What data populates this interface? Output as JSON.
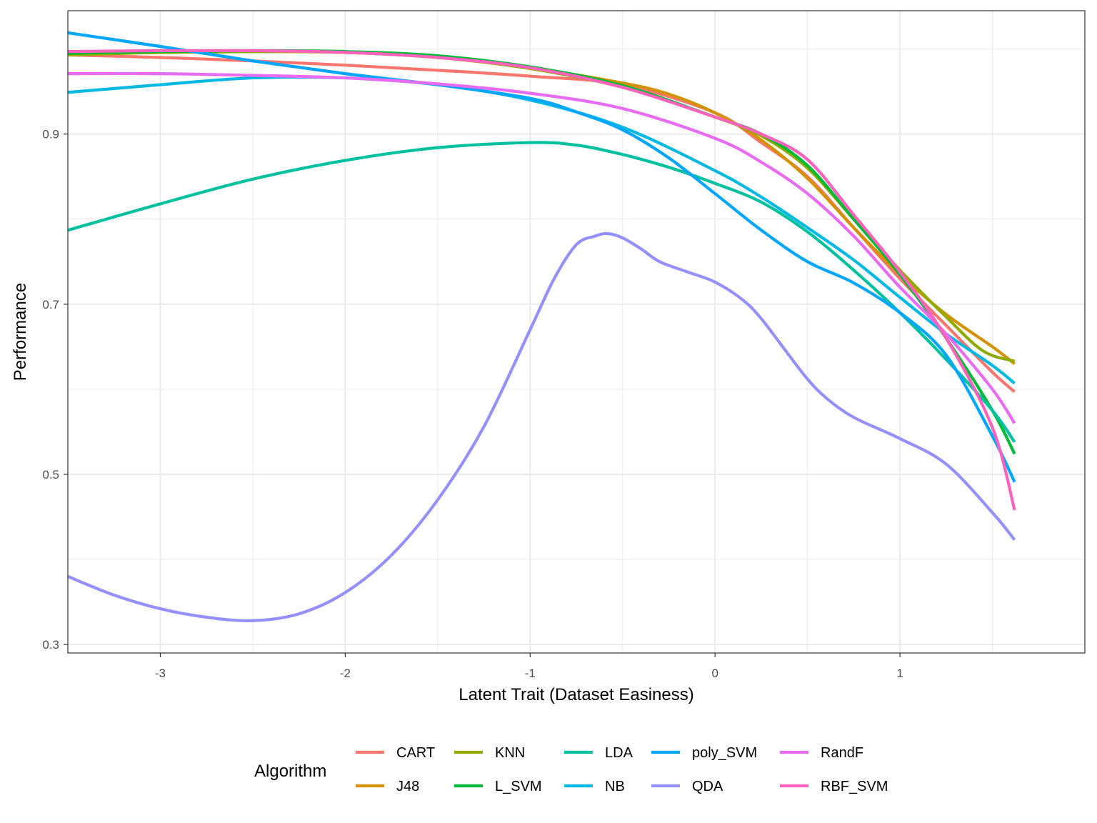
{
  "chart_data": {
    "type": "line",
    "xlabel": "Latent Trait (Dataset Easiness)",
    "ylabel": "Performance",
    "xlim": [
      -3.5,
      2.0
    ],
    "ylim": [
      0.29,
      1.045
    ],
    "x_ticks": [
      -3,
      -2,
      -1,
      0,
      1
    ],
    "x_tick_labels": [
      "-3",
      "-2",
      "-1",
      "0",
      "1"
    ],
    "y_ticks": [
      0.3,
      0.5,
      0.7,
      0.9
    ],
    "y_tick_labels": [
      "0.3",
      "0.5",
      "0.7",
      "0.9"
    ],
    "grid": true,
    "legend_title": "Algorithm",
    "legend_position": "bottom",
    "series": [
      {
        "name": "CART",
        "color": "#F8766D",
        "points": [
          [
            -3.5,
            0.993
          ],
          [
            -3,
            0.99
          ],
          [
            -2.5,
            0.986
          ],
          [
            -2,
            0.981
          ],
          [
            -1.5,
            0.975
          ],
          [
            -1,
            0.968
          ],
          [
            -0.5,
            0.958
          ],
          [
            0,
            0.925
          ],
          [
            0.25,
            0.89
          ],
          [
            0.5,
            0.85
          ],
          [
            0.75,
            0.79
          ],
          [
            1,
            0.73
          ],
          [
            1.25,
            0.675
          ],
          [
            1.5,
            0.62
          ],
          [
            1.62,
            0.597
          ]
        ]
      },
      {
        "name": "J48",
        "color": "#D39200",
        "points": [
          [
            -3.5,
            0.994
          ],
          [
            -3,
            0.996
          ],
          [
            -2.5,
            0.997
          ],
          [
            -2,
            0.996
          ],
          [
            -1.5,
            0.99
          ],
          [
            -1,
            0.978
          ],
          [
            -0.5,
            0.96
          ],
          [
            -0.25,
            0.947
          ],
          [
            0,
            0.925
          ],
          [
            0.25,
            0.893
          ],
          [
            0.5,
            0.848
          ],
          [
            0.75,
            0.79
          ],
          [
            1,
            0.735
          ],
          [
            1.25,
            0.688
          ],
          [
            1.5,
            0.65
          ],
          [
            1.62,
            0.63
          ]
        ]
      },
      {
        "name": "KNN",
        "color": "#93AA00",
        "points": [
          [
            -3.5,
            0.993
          ],
          [
            -3,
            0.996
          ],
          [
            -2.5,
            0.997
          ],
          [
            -2,
            0.996
          ],
          [
            -1.5,
            0.99
          ],
          [
            -1,
            0.977
          ],
          [
            -0.5,
            0.955
          ],
          [
            0,
            0.92
          ],
          [
            0.25,
            0.898
          ],
          [
            0.5,
            0.86
          ],
          [
            0.75,
            0.8
          ],
          [
            1,
            0.74
          ],
          [
            1.25,
            0.685
          ],
          [
            1.45,
            0.645
          ],
          [
            1.62,
            0.633
          ]
        ]
      },
      {
        "name": "L_SVM",
        "color": "#00BA38",
        "points": [
          [
            -3.5,
            0.995
          ],
          [
            -3,
            0.997
          ],
          [
            -2.5,
            0.998
          ],
          [
            -2,
            0.997
          ],
          [
            -1.5,
            0.992
          ],
          [
            -1,
            0.979
          ],
          [
            -0.5,
            0.957
          ],
          [
            0,
            0.92
          ],
          [
            0.25,
            0.9
          ],
          [
            0.5,
            0.863
          ],
          [
            0.75,
            0.8
          ],
          [
            1,
            0.735
          ],
          [
            1.25,
            0.66
          ],
          [
            1.5,
            0.575
          ],
          [
            1.62,
            0.524
          ]
        ]
      },
      {
        "name": "LDA",
        "color": "#00C19F",
        "points": [
          [
            -3.5,
            0.787
          ],
          [
            -3,
            0.818
          ],
          [
            -2.5,
            0.847
          ],
          [
            -2,
            0.869
          ],
          [
            -1.5,
            0.884
          ],
          [
            -1,
            0.89
          ],
          [
            -0.75,
            0.887
          ],
          [
            -0.5,
            0.876
          ],
          [
            -0.25,
            0.861
          ],
          [
            0,
            0.842
          ],
          [
            0.25,
            0.82
          ],
          [
            0.5,
            0.785
          ],
          [
            0.75,
            0.74
          ],
          [
            1,
            0.69
          ],
          [
            1.25,
            0.635
          ],
          [
            1.5,
            0.575
          ],
          [
            1.62,
            0.538
          ]
        ]
      },
      {
        "name": "NB",
        "color": "#00B9E3",
        "points": [
          [
            -3.5,
            0.949
          ],
          [
            -3,
            0.958
          ],
          [
            -2.5,
            0.966
          ],
          [
            -2,
            0.966
          ],
          [
            -1.5,
            0.958
          ],
          [
            -1,
            0.94
          ],
          [
            -0.5,
            0.908
          ],
          [
            0,
            0.857
          ],
          [
            0.25,
            0.826
          ],
          [
            0.5,
            0.79
          ],
          [
            0.75,
            0.752
          ],
          [
            1,
            0.708
          ],
          [
            1.25,
            0.665
          ],
          [
            1.5,
            0.628
          ],
          [
            1.62,
            0.607
          ]
        ]
      },
      {
        "name": "poly_SVM",
        "color": "#00A6FF",
        "points": [
          [
            -3.5,
            1.019
          ],
          [
            -3,
            1.003
          ],
          [
            -2.5,
            0.986
          ],
          [
            -2,
            0.971
          ],
          [
            -1.5,
            0.958
          ],
          [
            -1,
            0.942
          ],
          [
            -0.75,
            0.926
          ],
          [
            -0.5,
            0.905
          ],
          [
            -0.25,
            0.872
          ],
          [
            0,
            0.83
          ],
          [
            0.25,
            0.787
          ],
          [
            0.5,
            0.75
          ],
          [
            0.75,
            0.725
          ],
          [
            1,
            0.69
          ],
          [
            1.25,
            0.64
          ],
          [
            1.5,
            0.545
          ],
          [
            1.62,
            0.491
          ]
        ]
      },
      {
        "name": "QDA",
        "color": "#9590FF",
        "points": [
          [
            -3.5,
            0.38
          ],
          [
            -3.25,
            0.358
          ],
          [
            -3,
            0.342
          ],
          [
            -2.75,
            0.332
          ],
          [
            -2.5,
            0.328
          ],
          [
            -2.25,
            0.336
          ],
          [
            -2,
            0.361
          ],
          [
            -1.75,
            0.405
          ],
          [
            -1.5,
            0.47
          ],
          [
            -1.25,
            0.556
          ],
          [
            -1,
            0.67
          ],
          [
            -0.87,
            0.73
          ],
          [
            -0.75,
            0.77
          ],
          [
            -0.65,
            0.78
          ],
          [
            -0.58,
            0.783
          ],
          [
            -0.5,
            0.778
          ],
          [
            -0.4,
            0.765
          ],
          [
            -0.3,
            0.75
          ],
          [
            -0.15,
            0.738
          ],
          [
            0,
            0.726
          ],
          [
            0.15,
            0.705
          ],
          [
            0.25,
            0.683
          ],
          [
            0.4,
            0.64
          ],
          [
            0.5,
            0.612
          ],
          [
            0.6,
            0.59
          ],
          [
            0.75,
            0.567
          ],
          [
            1,
            0.542
          ],
          [
            1.25,
            0.512
          ],
          [
            1.5,
            0.455
          ],
          [
            1.62,
            0.423
          ]
        ]
      },
      {
        "name": "RandF",
        "color": "#E76BF3",
        "points": [
          [
            -3.5,
            0.971
          ],
          [
            -3,
            0.971
          ],
          [
            -2.5,
            0.969
          ],
          [
            -2,
            0.966
          ],
          [
            -1.5,
            0.959
          ],
          [
            -1,
            0.948
          ],
          [
            -0.5,
            0.93
          ],
          [
            0,
            0.895
          ],
          [
            0.25,
            0.867
          ],
          [
            0.5,
            0.83
          ],
          [
            0.75,
            0.78
          ],
          [
            1,
            0.72
          ],
          [
            1.25,
            0.665
          ],
          [
            1.5,
            0.6
          ],
          [
            1.62,
            0.56
          ]
        ]
      },
      {
        "name": "RBF_SVM",
        "color": "#FF62BC",
        "points": [
          [
            -3.5,
            0.997
          ],
          [
            -3,
            0.998
          ],
          [
            -2.5,
            0.998
          ],
          [
            -2,
            0.996
          ],
          [
            -1.5,
            0.99
          ],
          [
            -1,
            0.978
          ],
          [
            -0.5,
            0.955
          ],
          [
            0,
            0.92
          ],
          [
            0.25,
            0.9
          ],
          [
            0.5,
            0.87
          ],
          [
            0.75,
            0.805
          ],
          [
            1,
            0.738
          ],
          [
            1.25,
            0.66
          ],
          [
            1.5,
            0.555
          ],
          [
            1.62,
            0.458
          ]
        ]
      }
    ]
  }
}
